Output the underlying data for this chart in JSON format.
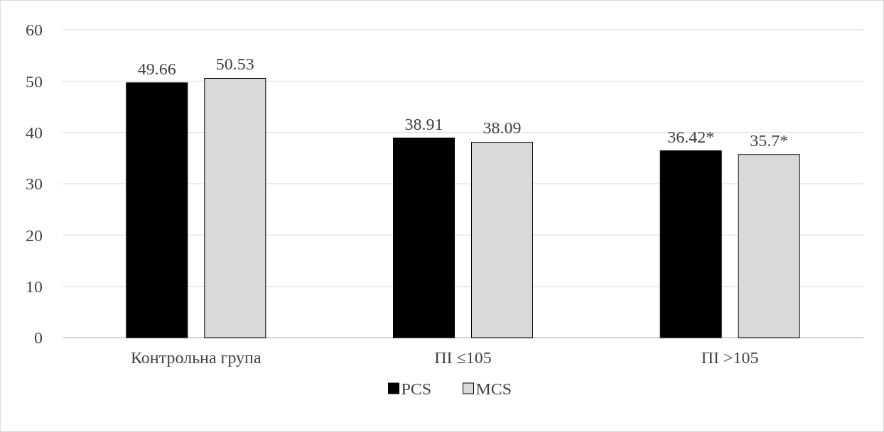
{
  "chart_data": {
    "type": "bar",
    "categories": [
      "Контрольна група",
      "ПІ ≤105",
      "ПІ >105"
    ],
    "series": [
      {
        "name": "PCS",
        "color": "#000000",
        "values": [
          49.66,
          38.91,
          36.42
        ],
        "value_labels": [
          "49.66",
          "38.91",
          "36.42*"
        ]
      },
      {
        "name": "MCS",
        "color": "#d9d9d9",
        "values": [
          50.53,
          38.09,
          35.7
        ],
        "value_labels": [
          "50.53",
          "38.09",
          "35.7*"
        ]
      }
    ],
    "ylim": [
      0,
      60
    ],
    "yticks": [
      0,
      10,
      20,
      30,
      40,
      50,
      60
    ],
    "grid": "y",
    "legend": "bottom"
  }
}
